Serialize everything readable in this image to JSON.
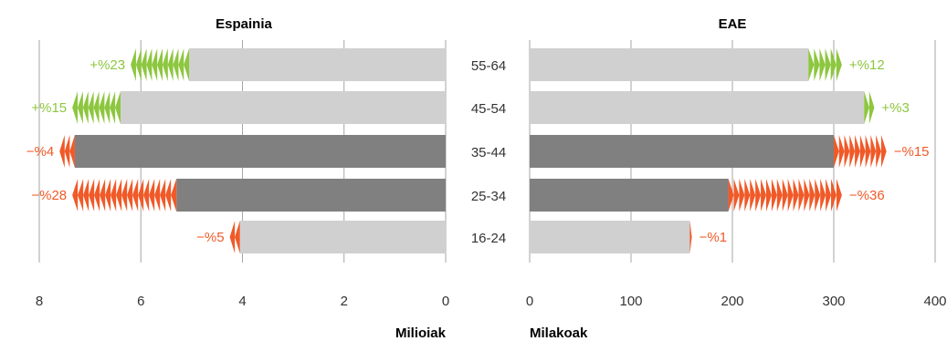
{
  "colors": {
    "bar_light": "#d0d0d0",
    "bar_dark": "#808080",
    "increase": "#8dc63f",
    "decrease": "#f05a28",
    "grid": "#a6a6a6"
  },
  "chart_data": [
    {
      "type": "bar",
      "orientation": "horizontal",
      "direction": "leftward",
      "title": "Espainia",
      "xlabel": "Milioiak",
      "xlim": [
        0,
        8
      ],
      "xticks": [
        "8",
        "6",
        "4",
        "2",
        "0"
      ],
      "grid": true,
      "categories": [
        "55-64",
        "45-54",
        "35-44",
        "25-34",
        "16-24"
      ],
      "values": [
        5.05,
        6.4,
        7.3,
        5.3,
        4.05
      ],
      "change_values": [
        6.2,
        7.35,
        7.6,
        7.35,
        4.25
      ],
      "change_labels": [
        "+%23",
        "+%15",
        "−%4",
        "−%28",
        "−%5"
      ],
      "change_sign": [
        "up",
        "up",
        "down",
        "down",
        "down"
      ],
      "bar_shade": [
        "light",
        "light",
        "dark",
        "dark",
        "light"
      ]
    },
    {
      "type": "bar",
      "orientation": "horizontal",
      "direction": "rightward",
      "title": "EAE",
      "xlabel": "Milakoak",
      "xlim": [
        0,
        400
      ],
      "xticks": [
        "0",
        "100",
        "200",
        "300",
        "400"
      ],
      "grid": true,
      "categories": [
        "55-64",
        "45-54",
        "35-44",
        "25-34",
        "16-24"
      ],
      "values": [
        275,
        330,
        300,
        196,
        158
      ],
      "change_values": [
        308,
        340,
        352,
        308,
        160
      ],
      "change_labels": [
        "+%12",
        "+%3",
        "−%15",
        "−%36",
        "−%1"
      ],
      "change_sign": [
        "up",
        "up",
        "down",
        "down",
        "down"
      ],
      "bar_shade": [
        "light",
        "light",
        "dark",
        "dark",
        "light"
      ]
    }
  ]
}
